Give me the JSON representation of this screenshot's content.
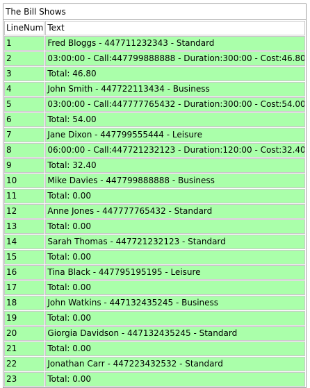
{
  "table": {
    "caption": "The Bill Shows",
    "headers": [
      "LineNum",
      "Text"
    ],
    "rows": [
      [
        "1",
        "Fred Bloggs - 447711232343 - Standard"
      ],
      [
        "2",
        "03:00:00 - Call:447799888888 - Duration:300:00 - Cost:46.80"
      ],
      [
        "3",
        "Total: 46.80"
      ],
      [
        "4",
        "John Smith - 447722113434 - Business"
      ],
      [
        "5",
        "03:00:00 - Call:447777765432 - Duration:300:00 - Cost:54.00"
      ],
      [
        "6",
        "Total: 54.00"
      ],
      [
        "7",
        "Jane Dixon - 447799555444 - Leisure"
      ],
      [
        "8",
        "06:00:00 - Call:447721232123 - Duration:120:00 - Cost:32.40"
      ],
      [
        "9",
        "Total: 32.40"
      ],
      [
        "10",
        "Mike Davies - 447799888888 - Business"
      ],
      [
        "11",
        "Total: 0.00"
      ],
      [
        "12",
        "Anne Jones - 447777765432 - Standard"
      ],
      [
        "13",
        "Total: 0.00"
      ],
      [
        "14",
        "Sarah Thomas - 447721232123 - Standard"
      ],
      [
        "15",
        "Total: 0.00"
      ],
      [
        "16",
        "Tina Black - 447795195195 - Leisure"
      ],
      [
        "17",
        "Total: 0.00"
      ],
      [
        "18",
        "John Watkins - 447132435245 - Business"
      ],
      [
        "19",
        "Total: 0.00"
      ],
      [
        "20",
        "Giorgia Davidson - 447132435245 - Standard"
      ],
      [
        "21",
        "Total: 0.00"
      ],
      [
        "22",
        "Jonathan Carr - 447223432532 - Standard"
      ],
      [
        "23",
        "Total: 0.00"
      ]
    ]
  },
  "colors": {
    "row_background": "#aaffaa",
    "header_background": "#ffffff",
    "border": "#c8c8c8"
  }
}
